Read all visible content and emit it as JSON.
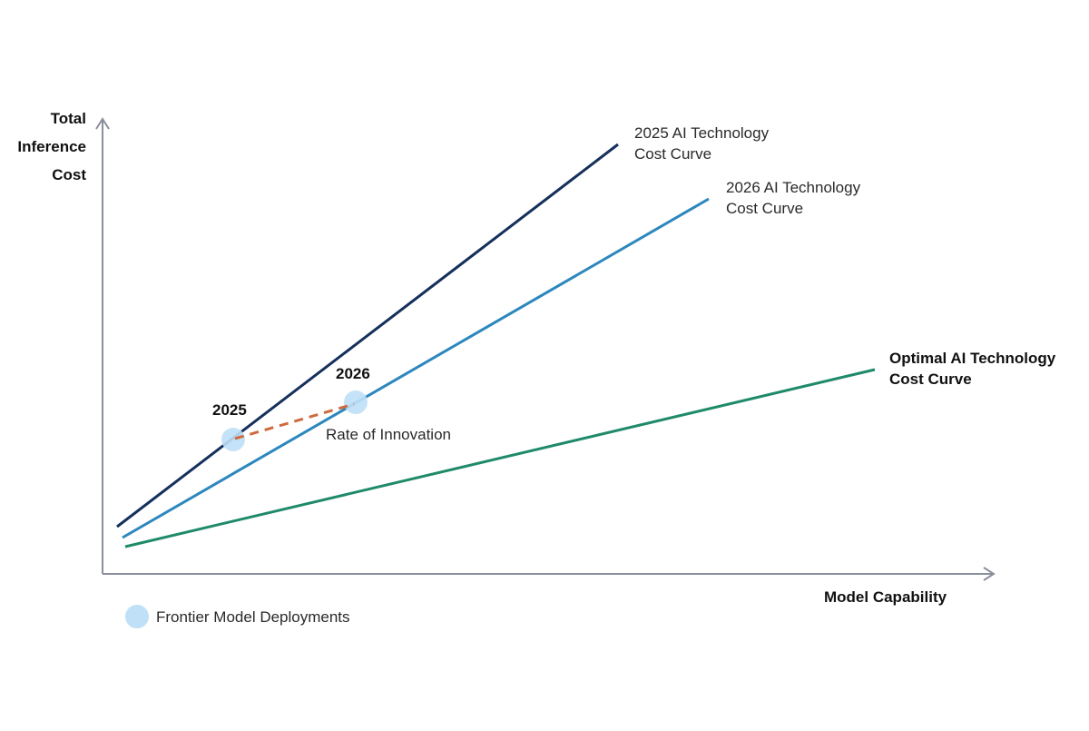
{
  "axes": {
    "y_label_lines": [
      "Total",
      "Inference",
      "Cost"
    ],
    "x_label": "Model Capability"
  },
  "curves": [
    {
      "id": "c2025",
      "label_lines": [
        "2025 AI Technology",
        "Cost Curve"
      ],
      "color": "#15305b",
      "bold": false
    },
    {
      "id": "c2026",
      "label_lines": [
        "2026 AI Technology",
        "Cost Curve"
      ],
      "color": "#2c87bd",
      "bold": false
    },
    {
      "id": "optimal",
      "label_lines": [
        "Optimal AI Technology",
        "Cost Curve"
      ],
      "color": "#1f8a6a",
      "bold": true
    }
  ],
  "points": [
    {
      "label": "2025",
      "curve": "c2025"
    },
    {
      "label": "2026",
      "curve": "c2026"
    }
  ],
  "innovation_label": "Rate of Innovation",
  "colors": {
    "axis": "#8a8f9c",
    "dot": "#bfe0f7",
    "dashed": "#cf6a3f"
  },
  "legend": {
    "label": "Frontier Model Deployments",
    "icon": "light-blue-circle"
  }
}
